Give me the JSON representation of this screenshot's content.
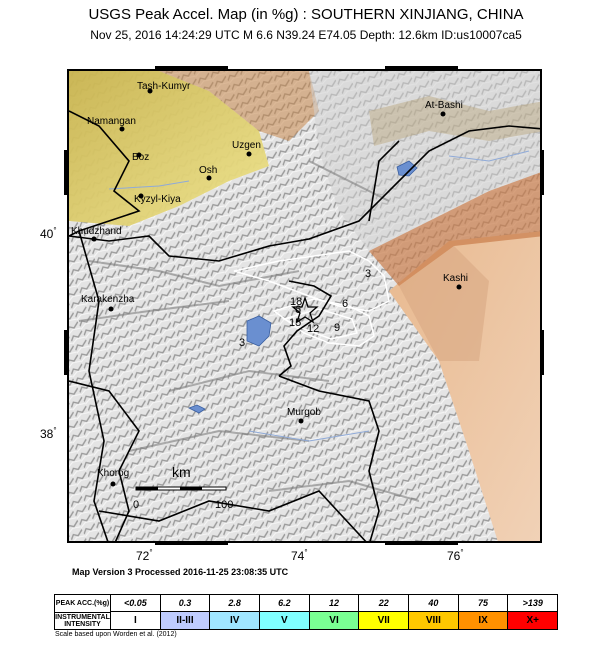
{
  "title": "USGS Peak Accel. Map (in %g) : SOUTHERN XINJIANG, CHINA",
  "subtitle": "Nov 25, 2016 14:24:29 UTC   M 6.6   N39.24 E74.05   Depth: 12.6km   ID:us10007ca5",
  "axes": {
    "lon_labels": [
      "72",
      "74",
      "76"
    ],
    "lat_labels": [
      "40",
      "38"
    ],
    "degree_symbol": "°"
  },
  "places": [
    {
      "name": "Tash-Kumyr"
    },
    {
      "name": "At-Bashi"
    },
    {
      "name": "Namangan"
    },
    {
      "name": "Boz"
    },
    {
      "name": "Uzgen"
    },
    {
      "name": "Osh"
    },
    {
      "name": "Kyzyl-Kiya"
    },
    {
      "name": "Khudzhand"
    },
    {
      "name": "Kashi"
    },
    {
      "name": "Karakenzha"
    },
    {
      "name": "Murgob"
    },
    {
      "name": "Khorog"
    }
  ],
  "contour_labels": [
    "3",
    "6",
    "9",
    "12",
    "15",
    "18",
    "6",
    "3"
  ],
  "scale_bar": {
    "unit": "km",
    "start": "0",
    "end": "100"
  },
  "version_text": "Map Version 3 Processed 2016-11-25 23:08:35 UTC",
  "legend": {
    "pga_header": "PEAK ACC.(%g)",
    "intensity_header": "INSTRUMENTAL INTENSITY",
    "columns": [
      {
        "pga": "<0.05",
        "mmi": "I",
        "color": "#ffffff"
      },
      {
        "pga": "0.3",
        "mmi": "II-III",
        "color": "#bfccff"
      },
      {
        "pga": "2.8",
        "mmi": "IV",
        "color": "#a0e6ff"
      },
      {
        "pga": "6.2",
        "mmi": "V",
        "color": "#80ffff"
      },
      {
        "pga": "12",
        "mmi": "VI",
        "color": "#7aff93"
      },
      {
        "pga": "22",
        "mmi": "VII",
        "color": "#ffff00"
      },
      {
        "pga": "40",
        "mmi": "VIII",
        "color": "#ffc800"
      },
      {
        "pga": "75",
        "mmi": "IX",
        "color": "#ff9100"
      },
      {
        "pga": ">139",
        "mmi": "X+",
        "color": "#ff0000"
      }
    ]
  },
  "credit": "Scale based upon Worden et al. (2012)",
  "colors": {
    "lowland": "#e3d36a",
    "basin": "#e8b98f",
    "mountain": "#d9d9d9",
    "water": "#6a8fd0",
    "border": "#000000"
  }
}
